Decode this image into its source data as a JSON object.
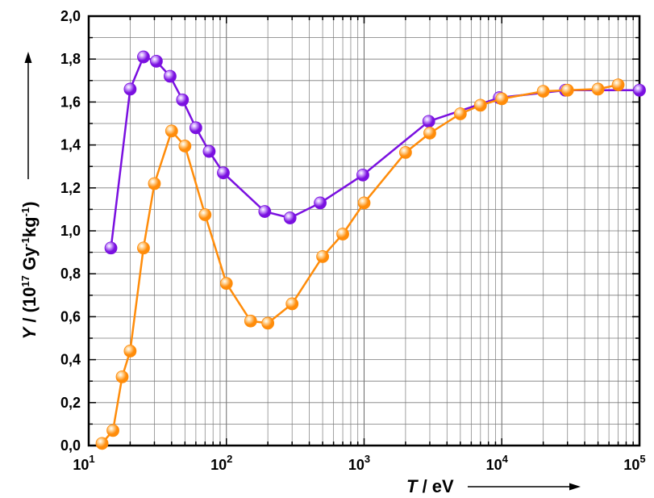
{
  "chart_data": {
    "type": "line",
    "x_scale": "log",
    "xlim": [
      10,
      100000
    ],
    "ylim": [
      0.0,
      2.0
    ],
    "grid": true,
    "xlabel": {
      "var": "T",
      "unit": " / eV"
    },
    "ylabel": {
      "var": "Y",
      "mid": " / (10",
      "exp1": "17",
      "unit1": " Gy",
      "exp2": "-1",
      "unit2": "kg",
      "exp3": "-1",
      "close": ")"
    },
    "x_ticks": [
      {
        "base": "10",
        "exp": "1",
        "value": 10
      },
      {
        "base": "10",
        "exp": "2",
        "value": 100
      },
      {
        "base": "10",
        "exp": "3",
        "value": 1000
      },
      {
        "base": "10",
        "exp": "4",
        "value": 10000
      },
      {
        "base": "10",
        "exp": "5",
        "value": 100000
      }
    ],
    "y_ticks": [
      {
        "label": "0,0",
        "value": 0.0
      },
      {
        "label": "0,2",
        "value": 0.2
      },
      {
        "label": "0,4",
        "value": 0.4
      },
      {
        "label": "0,6",
        "value": 0.6
      },
      {
        "label": "0,8",
        "value": 0.8
      },
      {
        "label": "1,0",
        "value": 1.0
      },
      {
        "label": "1,2",
        "value": 1.2
      },
      {
        "label": "1,4",
        "value": 1.4
      },
      {
        "label": "1,6",
        "value": 1.6
      },
      {
        "label": "1,8",
        "value": 1.8
      },
      {
        "label": "2,0",
        "value": 2.0
      }
    ],
    "series": [
      {
        "color": "#7a10e0",
        "highlight": "#d9b8ff",
        "points": [
          [
            14.5,
            0.92
          ],
          [
            20,
            1.66
          ],
          [
            25,
            1.81
          ],
          [
            31,
            1.79
          ],
          [
            39,
            1.72
          ],
          [
            48,
            1.61
          ],
          [
            60,
            1.48
          ],
          [
            75,
            1.37
          ],
          [
            95,
            1.27
          ],
          [
            190,
            1.09
          ],
          [
            290,
            1.06
          ],
          [
            480,
            1.13
          ],
          [
            980,
            1.26
          ],
          [
            2950,
            1.51
          ],
          [
            9600,
            1.62
          ],
          [
            29000,
            1.655
          ],
          [
            100000,
            1.655
          ]
        ]
      },
      {
        "color": "#ff8c0a",
        "highlight": "#ffe0b0",
        "points": [
          [
            12.5,
            0.01
          ],
          [
            15,
            0.07
          ],
          [
            17.5,
            0.32
          ],
          [
            20,
            0.44
          ],
          [
            25,
            0.92
          ],
          [
            30,
            1.22
          ],
          [
            40,
            1.465
          ],
          [
            50,
            1.395
          ],
          [
            70,
            1.075
          ],
          [
            100,
            0.755
          ],
          [
            150,
            0.58
          ],
          [
            200,
            0.57
          ],
          [
            300,
            0.66
          ],
          [
            500,
            0.88
          ],
          [
            700,
            0.985
          ],
          [
            1000,
            1.13
          ],
          [
            2000,
            1.365
          ],
          [
            3000,
            1.455
          ],
          [
            5000,
            1.545
          ],
          [
            7000,
            1.585
          ],
          [
            10000,
            1.615
          ],
          [
            20000,
            1.65
          ],
          [
            30000,
            1.655
          ],
          [
            50000,
            1.66
          ],
          [
            70000,
            1.68
          ]
        ]
      }
    ]
  }
}
